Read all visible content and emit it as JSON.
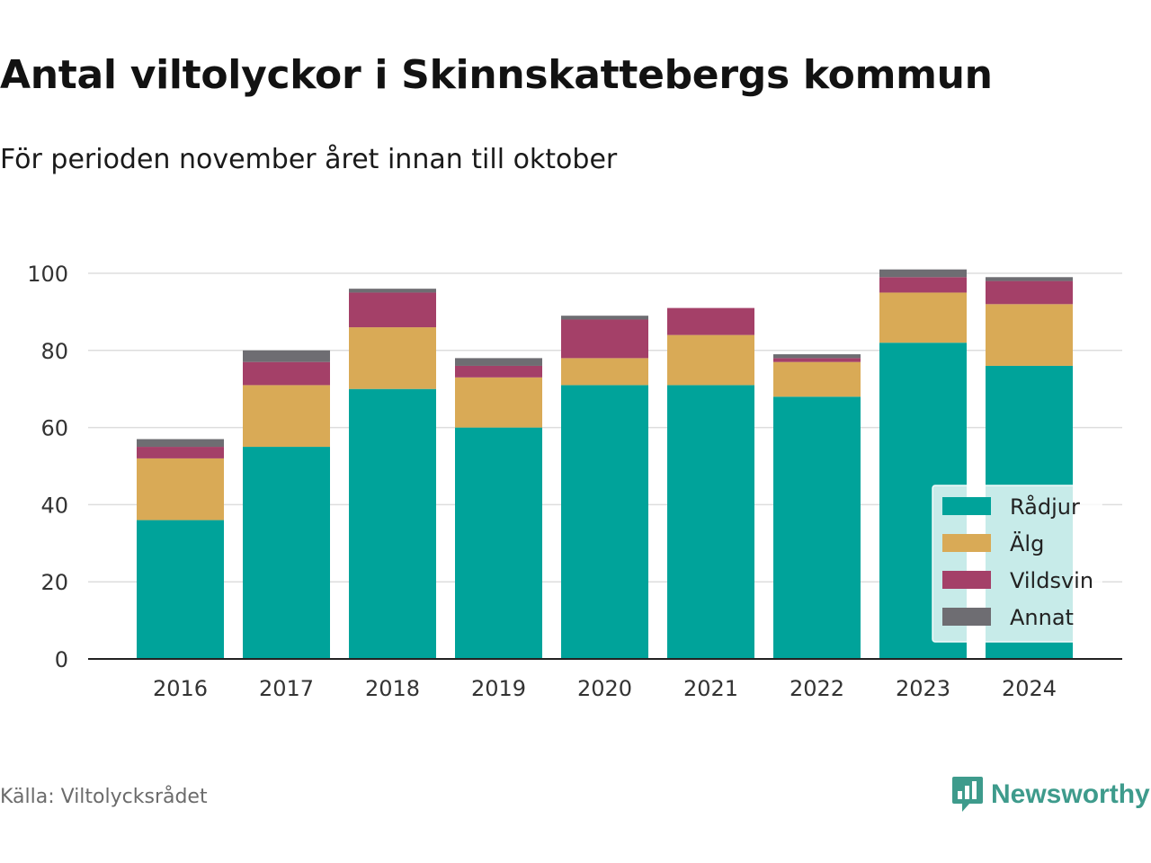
{
  "title": "Antal viltolyckor i Skinnskattebergs kommun",
  "subtitle": "För perioden november året innan till oktober",
  "source": "Källa: Viltolycksrådet",
  "brand": {
    "name": "Newsworthy",
    "icon": "newsworthy-logo-icon",
    "color": "#3e9b8c"
  },
  "chart_data": {
    "type": "bar",
    "stacked": true,
    "categories": [
      "2016",
      "2017",
      "2018",
      "2019",
      "2020",
      "2021",
      "2022",
      "2023",
      "2024"
    ],
    "series": [
      {
        "name": "Rådjur",
        "color": "#00a39a",
        "values": [
          36,
          55,
          70,
          60,
          71,
          71,
          68,
          82,
          76
        ]
      },
      {
        "name": "Älg",
        "color": "#d9aa56",
        "values": [
          16,
          16,
          16,
          13,
          7,
          13,
          9,
          13,
          16
        ]
      },
      {
        "name": "Vildsvin",
        "color": "#a44068",
        "values": [
          3,
          6,
          9,
          3,
          10,
          7,
          1,
          4,
          6
        ]
      },
      {
        "name": "Annat",
        "color": "#6e6d72",
        "values": [
          2,
          3,
          1,
          2,
          1,
          0,
          1,
          2,
          1
        ]
      }
    ],
    "ylim": [
      0,
      100
    ],
    "yticks": [
      "0",
      "20",
      "40",
      "60",
      "80",
      "100"
    ],
    "grid": true,
    "legend_position": "bottom-right",
    "xlabel": "",
    "ylabel": ""
  }
}
